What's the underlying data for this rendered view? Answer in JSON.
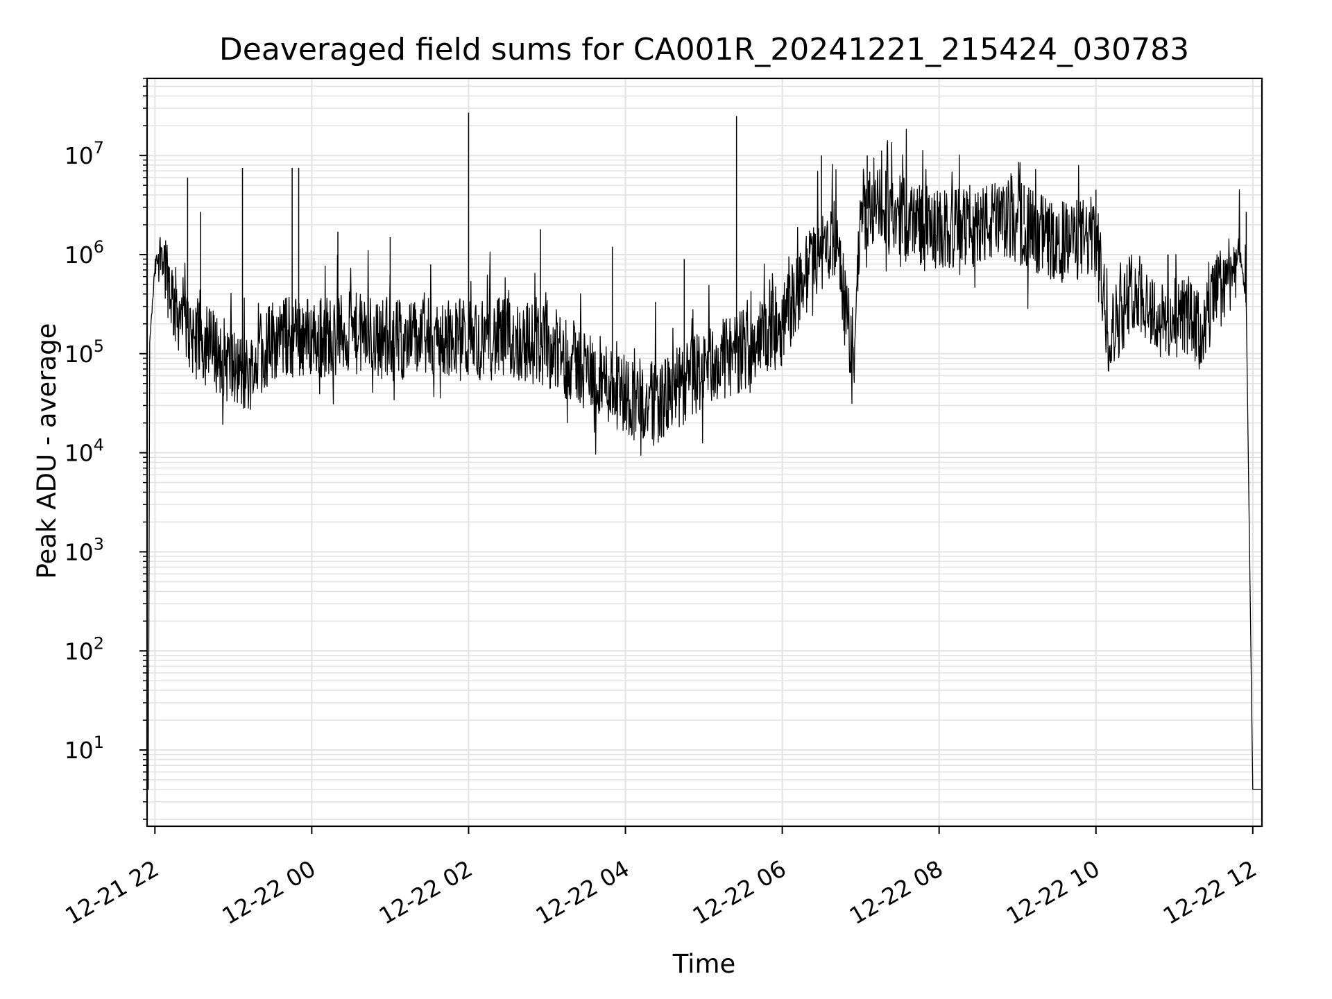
{
  "chart_data": {
    "type": "line",
    "title": "Deaveraged field sums for CA001R_20241221_215424_030783",
    "xlabel": "Time",
    "ylabel": "Peak ADU - average",
    "yscale": "log",
    "ylim": [
      1.7,
      60000000
    ],
    "xlim": [
      "2024-12-21 21:54",
      "2024-12-22 12:07"
    ],
    "grid": true,
    "line_color": "#000000",
    "grid_color": "#e3e3e3",
    "x_ticks": [
      "12-21 22",
      "12-22 00",
      "12-22 02",
      "12-22 04",
      "12-22 06",
      "12-22 08",
      "12-22 10",
      "12-22 12"
    ],
    "x_tick_times": [
      "2024-12-21 22:00",
      "2024-12-22 00:00",
      "2024-12-22 02:00",
      "2024-12-22 04:00",
      "2024-12-22 06:00",
      "2024-12-22 08:00",
      "2024-12-22 10:00",
      "2024-12-22 12:00"
    ],
    "y_ticks": [
      {
        "base": "10",
        "exp": "1",
        "value": 10
      },
      {
        "base": "10",
        "exp": "2",
        "value": 100
      },
      {
        "base": "10",
        "exp": "3",
        "value": 1000
      },
      {
        "base": "10",
        "exp": "4",
        "value": 10000
      },
      {
        "base": "10",
        "exp": "5",
        "value": 100000
      },
      {
        "base": "10",
        "exp": "6",
        "value": 1000000
      },
      {
        "base": "10",
        "exp": "7",
        "value": 10000000
      }
    ],
    "series": [
      {
        "x": [
          "2024-12-21 21:54",
          "2024-12-21 21:55",
          "2024-12-21 21:56",
          "2024-12-21 22:00",
          "2024-12-21 22:05",
          "2024-12-21 22:10",
          "2024-12-21 22:15",
          "2024-12-21 22:20",
          "2024-12-21 22:25",
          "2024-12-21 22:30",
          "2024-12-21 22:40",
          "2024-12-21 22:50",
          "2024-12-21 23:00",
          "2024-12-21 23:10",
          "2024-12-21 23:20",
          "2024-12-21 23:30",
          "2024-12-21 23:45",
          "2024-12-22 00:00",
          "2024-12-22 00:30",
          "2024-12-22 01:00",
          "2024-12-22 01:30",
          "2024-12-22 02:00",
          "2024-12-22 02:30",
          "2024-12-22 03:00",
          "2024-12-22 03:30",
          "2024-12-22 04:00",
          "2024-12-22 04:15",
          "2024-12-22 04:30",
          "2024-12-22 05:00",
          "2024-12-22 05:30",
          "2024-12-22 06:00",
          "2024-12-22 06:20",
          "2024-12-22 06:40",
          "2024-12-22 06:50",
          "2024-12-22 06:55",
          "2024-12-22 07:00",
          "2024-12-22 07:30",
          "2024-12-22 08:00",
          "2024-12-22 08:30",
          "2024-12-22 09:00",
          "2024-12-22 09:30",
          "2024-12-22 10:00",
          "2024-12-22 10:10",
          "2024-12-22 10:30",
          "2024-12-22 10:50",
          "2024-12-22 11:10",
          "2024-12-22 11:20",
          "2024-12-22 11:30",
          "2024-12-22 11:45",
          "2024-12-22 11:50",
          "2024-12-22 11:55",
          "2024-12-22 12:00",
          "2024-12-22 12:07"
        ],
        "y": [
          4,
          4,
          130000,
          700000,
          1200000,
          600000,
          300000,
          250000,
          180000,
          150000,
          120000,
          100000,
          70000,
          60000,
          90000,
          140000,
          150000,
          150000,
          160000,
          140000,
          140000,
          140000,
          140000,
          120000,
          70000,
          40000,
          30000,
          35000,
          70000,
          110000,
          200000,
          700000,
          1500000,
          200000,
          100000,
          3000000,
          2500000,
          1700000,
          2000000,
          2200000,
          1300000,
          1500000,
          150000,
          500000,
          200000,
          250000,
          150000,
          350000,
          800000,
          1100000,
          300000,
          4,
          4
        ]
      }
    ],
    "spikes": [
      {
        "x": "2024-12-21 22:25",
        "y": 6000000
      },
      {
        "x": "2024-12-21 22:35",
        "y": 2700000
      },
      {
        "x": "2024-12-21 23:07",
        "y": 7500000
      },
      {
        "x": "2024-12-21 23:45",
        "y": 7500000
      },
      {
        "x": "2024-12-21 23:50",
        "y": 7500000
      },
      {
        "x": "2024-12-22 00:20",
        "y": 1700000
      },
      {
        "x": "2024-12-22 01:00",
        "y": 1500000
      },
      {
        "x": "2024-12-22 02:00",
        "y": 27000000
      },
      {
        "x": "2024-12-22 02:55",
        "y": 1800000
      },
      {
        "x": "2024-12-22 03:50",
        "y": 1200000
      },
      {
        "x": "2024-12-22 04:45",
        "y": 900000
      },
      {
        "x": "2024-12-22 05:25",
        "y": 25000000
      },
      {
        "x": "2024-12-22 06:30",
        "y": 10000000
      },
      {
        "x": "2024-12-22 07:05",
        "y": 10000000
      },
      {
        "x": "2024-12-22 07:45",
        "y": 5000000
      },
      {
        "x": "2024-12-22 09:05",
        "y": 5000000
      },
      {
        "x": "2024-12-22 10:00",
        "y": 4500000
      },
      {
        "x": "2024-12-22 10:55",
        "y": 1000000
      },
      {
        "x": "2024-12-22 11:55",
        "y": 2700000
      }
    ]
  }
}
